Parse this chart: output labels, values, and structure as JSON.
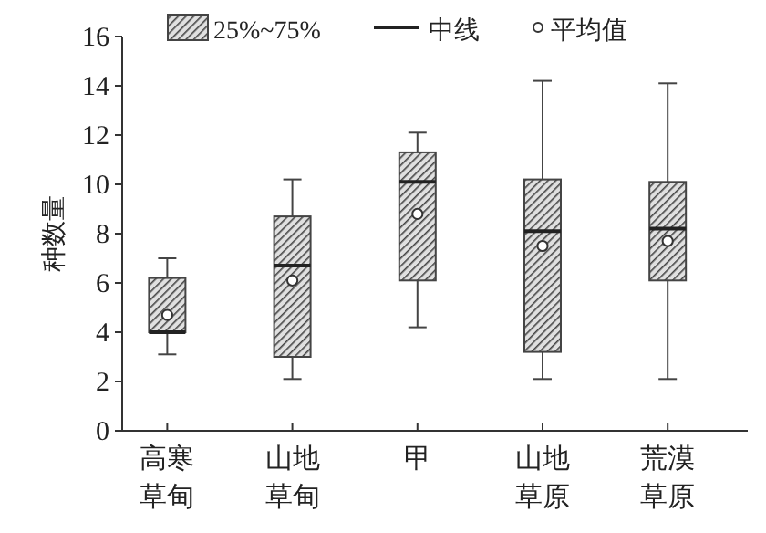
{
  "chart_data": {
    "type": "box",
    "ylabel": "种数量",
    "categories": [
      "高寒草甸",
      "山地草甸",
      "甲",
      "山地草原",
      "荒漠草原"
    ],
    "series": [
      {
        "name": "25%~75%",
        "color": "#444444",
        "boxes": [
          {
            "low": 3.1,
            "q1": 4.0,
            "median": 4.0,
            "q3": 6.2,
            "high": 7.0,
            "mean": 4.7
          },
          {
            "low": 2.1,
            "q1": 3.0,
            "median": 6.7,
            "q3": 8.7,
            "high": 10.2,
            "mean": 6.1
          },
          {
            "low": 4.2,
            "q1": 6.1,
            "median": 10.1,
            "q3": 11.3,
            "high": 12.1,
            "mean": 8.8
          },
          {
            "low": 2.1,
            "q1": 3.2,
            "median": 8.1,
            "q3": 10.2,
            "high": 14.2,
            "mean": 7.5
          },
          {
            "low": 2.1,
            "q1": 6.1,
            "median": 8.2,
            "q3": 10.1,
            "high": 14.1,
            "mean": 7.7
          }
        ]
      }
    ],
    "annotations": [
      "中线",
      "平均值"
    ],
    "ylim": [
      0,
      16
    ],
    "yticks": [
      0,
      2,
      4,
      6,
      8,
      10,
      12,
      14,
      16
    ],
    "grid": false,
    "legend": "top"
  }
}
